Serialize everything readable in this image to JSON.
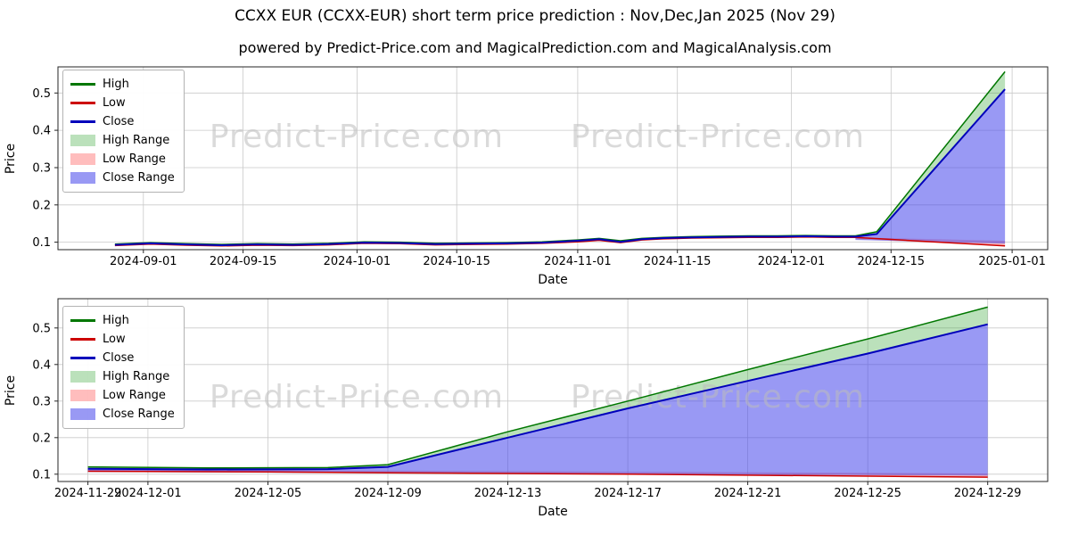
{
  "header": {
    "title": "CCXX EUR (CCXX-EUR) short term price prediction : Nov,Dec,Jan 2025 (Nov 29)",
    "subtitle": "powered by Predict-Price.com and MagicalPrediction.com and MagicalAnalysis.com"
  },
  "watermark": "Predict-Price.com",
  "colors": {
    "high_line": "#007700",
    "low_line": "#cc0000",
    "close_line": "#0000bb",
    "high_range_fill": "rgba(60,170,60,0.35)",
    "low_range_fill": "rgba(255,90,90,0.4)",
    "close_range_fill": "rgba(70,70,235,0.55)",
    "grid": "#c9c9c9"
  },
  "chart_data": [
    {
      "type": "area",
      "title": "",
      "xlabel": "Date",
      "ylabel": "Price",
      "ylim": [
        0.08,
        0.57
      ],
      "yticks": [
        0.1,
        0.2,
        0.3,
        0.4,
        0.5
      ],
      "xticks": [
        "2024-09-01",
        "2024-09-15",
        "2024-10-01",
        "2024-10-15",
        "2024-11-01",
        "2024-11-15",
        "2024-12-01",
        "2024-12-15",
        "2025-01-01"
      ],
      "xdomain": [
        "2024-08-20",
        "2025-01-06"
      ],
      "grid": true,
      "legend_position": "upper-left",
      "legend": [
        {
          "label": "High",
          "type": "line",
          "color": "#007700"
        },
        {
          "label": "Low",
          "type": "line",
          "color": "#cc0000"
        },
        {
          "label": "Close",
          "type": "line",
          "color": "#0000bb"
        },
        {
          "label": "High Range",
          "type": "patch",
          "color": "rgba(60,170,60,0.35)"
        },
        {
          "label": "Low Range",
          "type": "patch",
          "color": "rgba(255,90,90,0.4)"
        },
        {
          "label": "Close Range",
          "type": "patch",
          "color": "rgba(70,70,235,0.55)"
        }
      ],
      "areas": [
        {
          "name": "Low Range",
          "color": "rgba(255,90,90,0.4)",
          "upper": [
            [
              "2024-12-10",
              0.113
            ],
            [
              "2024-12-31",
              0.104
            ]
          ],
          "lower": [
            [
              "2024-12-10",
              0.108
            ],
            [
              "2024-12-31",
              0.09
            ]
          ]
        },
        {
          "name": "High Range",
          "color": "rgba(60,170,60,0.35)",
          "upper": [
            [
              "2024-12-10",
              0.117
            ],
            [
              "2024-12-13",
              0.128
            ],
            [
              "2024-12-31",
              0.557
            ]
          ],
          "lower": [
            [
              "2024-12-10",
              0.115
            ],
            [
              "2024-12-13",
              0.122
            ],
            [
              "2024-12-31",
              0.51
            ]
          ]
        },
        {
          "name": "Close Range",
          "color": "rgba(70,70,235,0.55)",
          "upper": [
            [
              "2024-12-10",
              0.115
            ],
            [
              "2024-12-13",
              0.122
            ],
            [
              "2024-12-31",
              0.51
            ]
          ],
          "lower": [
            [
              "2024-12-10",
              0.106
            ],
            [
              "2024-12-31",
              0.096
            ]
          ]
        }
      ],
      "series": [
        {
          "name": "High",
          "color": "#007700",
          "width": 1.5,
          "points": [
            [
              "2024-08-28",
              0.095
            ],
            [
              "2024-09-02",
              0.099
            ],
            [
              "2024-09-07",
              0.096
            ],
            [
              "2024-09-12",
              0.094
            ],
            [
              "2024-09-17",
              0.096
            ],
            [
              "2024-09-22",
              0.095
            ],
            [
              "2024-09-27",
              0.097
            ],
            [
              "2024-10-02",
              0.101
            ],
            [
              "2024-10-07",
              0.1
            ],
            [
              "2024-10-12",
              0.097
            ],
            [
              "2024-10-17",
              0.098
            ],
            [
              "2024-10-22",
              0.099
            ],
            [
              "2024-10-27",
              0.101
            ],
            [
              "2024-11-01",
              0.106
            ],
            [
              "2024-11-04",
              0.11
            ],
            [
              "2024-11-07",
              0.104
            ],
            [
              "2024-11-10",
              0.11
            ],
            [
              "2024-11-13",
              0.113
            ],
            [
              "2024-11-17",
              0.115
            ],
            [
              "2024-11-21",
              0.116
            ],
            [
              "2024-11-25",
              0.117
            ],
            [
              "2024-11-29",
              0.117
            ],
            [
              "2024-12-03",
              0.118
            ],
            [
              "2024-12-07",
              0.117
            ],
            [
              "2024-12-10",
              0.117
            ],
            [
              "2024-12-13",
              0.128
            ],
            [
              "2024-12-31",
              0.557
            ]
          ]
        },
        {
          "name": "Low",
          "color": "#cc0000",
          "width": 1.5,
          "points": [
            [
              "2024-08-28",
              0.091
            ],
            [
              "2024-09-02",
              0.095
            ],
            [
              "2024-09-07",
              0.092
            ],
            [
              "2024-09-12",
              0.09
            ],
            [
              "2024-09-17",
              0.092
            ],
            [
              "2024-09-22",
              0.091
            ],
            [
              "2024-09-27",
              0.093
            ],
            [
              "2024-10-02",
              0.097
            ],
            [
              "2024-10-07",
              0.096
            ],
            [
              "2024-10-12",
              0.093
            ],
            [
              "2024-10-17",
              0.094
            ],
            [
              "2024-10-22",
              0.095
            ],
            [
              "2024-10-27",
              0.097
            ],
            [
              "2024-11-01",
              0.101
            ],
            [
              "2024-11-04",
              0.105
            ],
            [
              "2024-11-07",
              0.099
            ],
            [
              "2024-11-10",
              0.106
            ],
            [
              "2024-11-13",
              0.109
            ],
            [
              "2024-11-17",
              0.111
            ],
            [
              "2024-11-21",
              0.112
            ],
            [
              "2024-11-25",
              0.113
            ],
            [
              "2024-11-29",
              0.113
            ],
            [
              "2024-12-03",
              0.114
            ],
            [
              "2024-12-07",
              0.113
            ],
            [
              "2024-12-10",
              0.113
            ],
            [
              "2024-12-31",
              0.09
            ]
          ]
        },
        {
          "name": "Close",
          "color": "#0000bb",
          "width": 2,
          "points": [
            [
              "2024-08-28",
              0.093
            ],
            [
              "2024-09-02",
              0.097
            ],
            [
              "2024-09-07",
              0.094
            ],
            [
              "2024-09-12",
              0.092
            ],
            [
              "2024-09-17",
              0.094
            ],
            [
              "2024-09-22",
              0.093
            ],
            [
              "2024-09-27",
              0.095
            ],
            [
              "2024-10-02",
              0.099
            ],
            [
              "2024-10-07",
              0.098
            ],
            [
              "2024-10-12",
              0.095
            ],
            [
              "2024-10-17",
              0.096
            ],
            [
              "2024-10-22",
              0.097
            ],
            [
              "2024-10-27",
              0.099
            ],
            [
              "2024-11-01",
              0.104
            ],
            [
              "2024-11-04",
              0.108
            ],
            [
              "2024-11-07",
              0.101
            ],
            [
              "2024-11-10",
              0.108
            ],
            [
              "2024-11-13",
              0.111
            ],
            [
              "2024-11-17",
              0.113
            ],
            [
              "2024-11-21",
              0.114
            ],
            [
              "2024-11-25",
              0.115
            ],
            [
              "2024-11-29",
              0.115
            ],
            [
              "2024-12-03",
              0.116
            ],
            [
              "2024-12-07",
              0.115
            ],
            [
              "2024-12-10",
              0.115
            ],
            [
              "2024-12-13",
              0.122
            ],
            [
              "2024-12-31",
              0.51
            ]
          ]
        }
      ]
    },
    {
      "type": "area",
      "title": "",
      "xlabel": "Date",
      "ylabel": "Price",
      "ylim": [
        0.08,
        0.58
      ],
      "yticks": [
        0.1,
        0.2,
        0.3,
        0.4,
        0.5
      ],
      "xticks": [
        "2024-11-29",
        "2024-12-01",
        "2024-12-05",
        "2024-12-09",
        "2024-12-13",
        "2024-12-17",
        "2024-12-21",
        "2024-12-25",
        "2024-12-29"
      ],
      "xdomain": [
        "2024-11-28",
        "2024-12-31"
      ],
      "grid": true,
      "legend_position": "upper-left",
      "legend": [
        {
          "label": "High",
          "type": "line",
          "color": "#007700"
        },
        {
          "label": "Low",
          "type": "line",
          "color": "#cc0000"
        },
        {
          "label": "Close",
          "type": "line",
          "color": "#0000bb"
        },
        {
          "label": "High Range",
          "type": "patch",
          "color": "rgba(60,170,60,0.35)"
        },
        {
          "label": "Low Range",
          "type": "patch",
          "color": "rgba(255,90,90,0.4)"
        },
        {
          "label": "Close Range",
          "type": "patch",
          "color": "rgba(70,70,235,0.55)"
        }
      ],
      "areas": [
        {
          "name": "Low Range",
          "color": "rgba(255,90,90,0.4)",
          "upper": [
            [
              "2024-11-29",
              0.112
            ],
            [
              "2024-12-09",
              0.11
            ],
            [
              "2024-12-29",
              0.102
            ]
          ],
          "lower": [
            [
              "2024-11-29",
              0.108
            ],
            [
              "2024-12-05",
              0.106
            ],
            [
              "2024-12-09",
              0.104
            ],
            [
              "2024-12-17",
              0.1
            ],
            [
              "2024-12-29",
              0.092
            ]
          ]
        },
        {
          "name": "High Range",
          "color": "rgba(60,170,60,0.35)",
          "upper": [
            [
              "2024-11-29",
              0.12
            ],
            [
              "2024-12-03",
              0.117
            ],
            [
              "2024-12-07",
              0.118
            ],
            [
              "2024-12-09",
              0.126
            ],
            [
              "2024-12-13",
              0.216
            ],
            [
              "2024-12-17",
              0.3
            ],
            [
              "2024-12-21",
              0.386
            ],
            [
              "2024-12-25",
              0.47
            ],
            [
              "2024-12-29",
              0.557
            ]
          ],
          "lower": [
            [
              "2024-11-29",
              0.115
            ],
            [
              "2024-12-03",
              0.113
            ],
            [
              "2024-12-07",
              0.114
            ],
            [
              "2024-12-09",
              0.12
            ],
            [
              "2024-12-13",
              0.2
            ],
            [
              "2024-12-17",
              0.28
            ],
            [
              "2024-12-21",
              0.355
            ],
            [
              "2024-12-25",
              0.43
            ],
            [
              "2024-12-29",
              0.51
            ]
          ]
        },
        {
          "name": "Close Range",
          "color": "rgba(70,70,235,0.55)",
          "upper": [
            [
              "2024-11-29",
              0.115
            ],
            [
              "2024-12-03",
              0.113
            ],
            [
              "2024-12-07",
              0.114
            ],
            [
              "2024-12-09",
              0.12
            ],
            [
              "2024-12-13",
              0.2
            ],
            [
              "2024-12-17",
              0.28
            ],
            [
              "2024-12-21",
              0.355
            ],
            [
              "2024-12-25",
              0.43
            ],
            [
              "2024-12-29",
              0.51
            ]
          ],
          "lower": [
            [
              "2024-11-29",
              0.106
            ],
            [
              "2024-12-29",
              0.096
            ]
          ]
        }
      ],
      "series": [
        {
          "name": "High",
          "color": "#007700",
          "width": 1.5,
          "points": [
            [
              "2024-11-29",
              0.12
            ],
            [
              "2024-12-03",
              0.117
            ],
            [
              "2024-12-07",
              0.118
            ],
            [
              "2024-12-09",
              0.126
            ],
            [
              "2024-12-13",
              0.216
            ],
            [
              "2024-12-17",
              0.3
            ],
            [
              "2024-12-21",
              0.386
            ],
            [
              "2024-12-25",
              0.47
            ],
            [
              "2024-12-29",
              0.557
            ]
          ]
        },
        {
          "name": "Low",
          "color": "#cc0000",
          "width": 1.5,
          "points": [
            [
              "2024-11-29",
              0.108
            ],
            [
              "2024-12-05",
              0.106
            ],
            [
              "2024-12-09",
              0.104
            ],
            [
              "2024-12-17",
              0.1
            ],
            [
              "2024-12-29",
              0.092
            ]
          ]
        },
        {
          "name": "Close",
          "color": "#0000bb",
          "width": 2,
          "points": [
            [
              "2024-11-29",
              0.115
            ],
            [
              "2024-12-03",
              0.113
            ],
            [
              "2024-12-07",
              0.114
            ],
            [
              "2024-12-09",
              0.12
            ],
            [
              "2024-12-13",
              0.2
            ],
            [
              "2024-12-17",
              0.28
            ],
            [
              "2024-12-21",
              0.355
            ],
            [
              "2024-12-25",
              0.43
            ],
            [
              "2024-12-29",
              0.51
            ]
          ]
        }
      ]
    }
  ]
}
